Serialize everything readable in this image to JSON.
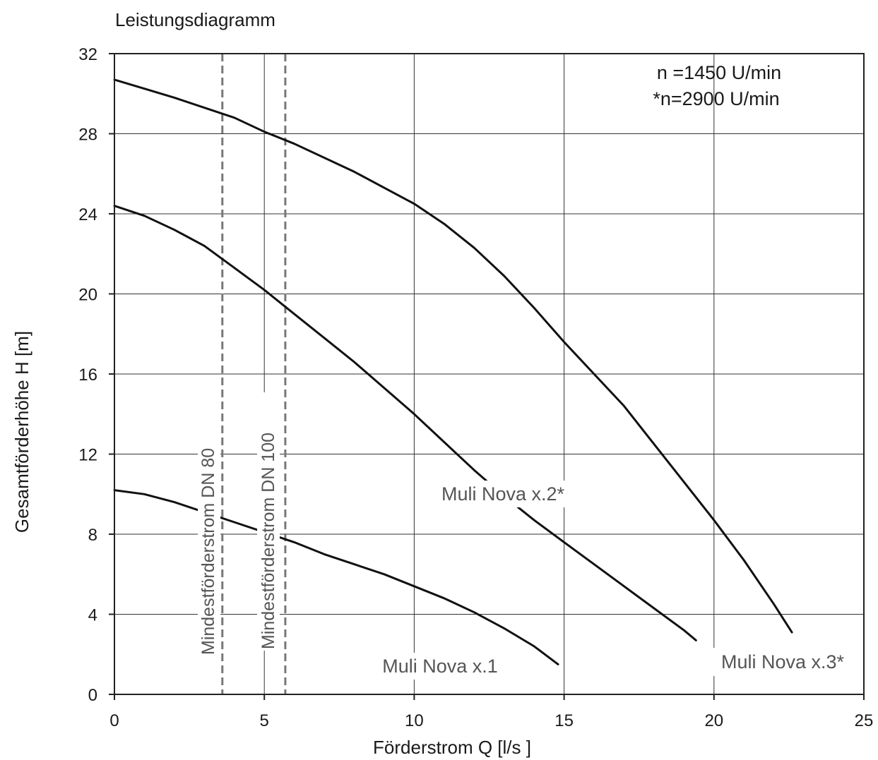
{
  "chart_data": {
    "type": "line",
    "title": "Leistungsdiagramm",
    "xlabel": "Förderstrom Q [l/s ]",
    "ylabel": "Gesamtförderhöhe H  [m]",
    "xlim": [
      0,
      25
    ],
    "ylim": [
      0,
      32
    ],
    "x_ticks": [
      0,
      5,
      10,
      15,
      20,
      25
    ],
    "y_ticks": [
      0,
      4,
      8,
      12,
      16,
      20,
      24,
      28,
      32
    ],
    "grid": true,
    "notes": [
      "n =1450 U/min",
      "*n=2900 U/min"
    ],
    "series": [
      {
        "name": "Muli Nova x.1",
        "x": [
          0,
          1,
          2,
          3,
          4,
          5,
          6,
          7,
          8,
          9,
          10,
          11,
          12,
          13,
          14,
          14.8
        ],
        "y": [
          10.2,
          10.0,
          9.6,
          9.1,
          8.6,
          8.1,
          7.6,
          7.0,
          6.5,
          6.0,
          5.4,
          4.8,
          4.1,
          3.3,
          2.4,
          1.5
        ]
      },
      {
        "name": "Muli Nova x.2*",
        "x": [
          0,
          1,
          2,
          3,
          4,
          5,
          6,
          7,
          8,
          9,
          10,
          11,
          12,
          13,
          14,
          15,
          16,
          17,
          18,
          19,
          19.4
        ],
        "y": [
          24.4,
          23.9,
          23.2,
          22.4,
          21.3,
          20.2,
          19.0,
          17.8,
          16.6,
          15.3,
          14.0,
          12.6,
          11.2,
          9.9,
          8.7,
          7.6,
          6.5,
          5.4,
          4.3,
          3.2,
          2.7
        ]
      },
      {
        "name": "Muli Nova x.3*",
        "x": [
          0,
          2,
          4,
          5,
          6,
          8,
          10,
          11,
          12,
          13,
          14,
          15,
          16,
          17,
          18,
          19,
          20,
          21,
          22,
          22.6
        ],
        "y": [
          30.7,
          29.8,
          28.8,
          28.1,
          27.5,
          26.1,
          24.5,
          23.5,
          22.3,
          20.9,
          19.3,
          17.6,
          16.0,
          14.4,
          12.5,
          10.6,
          8.7,
          6.7,
          4.5,
          3.1
        ]
      }
    ],
    "reference_lines": [
      {
        "label": "Mindestförderstrom DN 80",
        "x": 3.6
      },
      {
        "label": "Mindestförderstrom DN 100",
        "x": 5.7
      }
    ]
  }
}
